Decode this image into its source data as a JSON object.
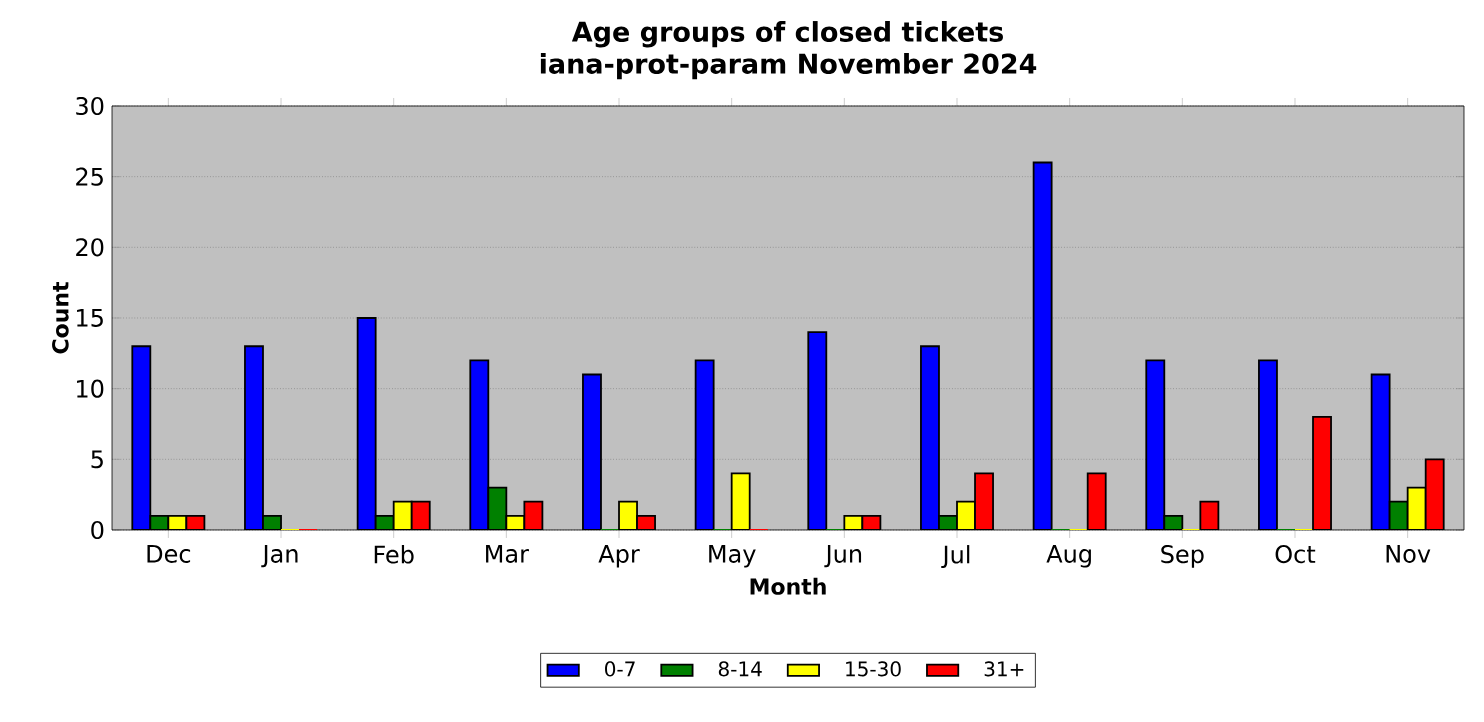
{
  "chart_data": {
    "type": "bar",
    "title": "Age groups of closed tickets",
    "subtitle": "iana-prot-param November 2024",
    "xlabel": "Month",
    "ylabel": "Count",
    "categories": [
      "Dec",
      "Jan",
      "Feb",
      "Mar",
      "Apr",
      "May",
      "Jun",
      "Jul",
      "Aug",
      "Sep",
      "Oct",
      "Nov"
    ],
    "series": [
      {
        "name": "0-7",
        "color": "#0000ff",
        "values": [
          13,
          13,
          15,
          12,
          11,
          12,
          14,
          13,
          26,
          12,
          12,
          11
        ]
      },
      {
        "name": "8-14",
        "color": "#008000",
        "values": [
          1,
          1,
          1,
          3,
          0,
          0,
          0,
          1,
          0,
          1,
          0,
          2
        ]
      },
      {
        "name": "15-30",
        "color": "#ffff00",
        "values": [
          1,
          0,
          2,
          1,
          2,
          4,
          1,
          2,
          0,
          0,
          0,
          3
        ]
      },
      {
        "name": "31+",
        "color": "#ff0000",
        "values": [
          1,
          0,
          2,
          2,
          1,
          0,
          1,
          4,
          4,
          2,
          8,
          5
        ]
      }
    ],
    "ylim": [
      0,
      30
    ],
    "yticks": [
      0,
      5,
      10,
      15,
      20,
      25,
      30
    ],
    "grid": "y",
    "legend": "bottom"
  }
}
